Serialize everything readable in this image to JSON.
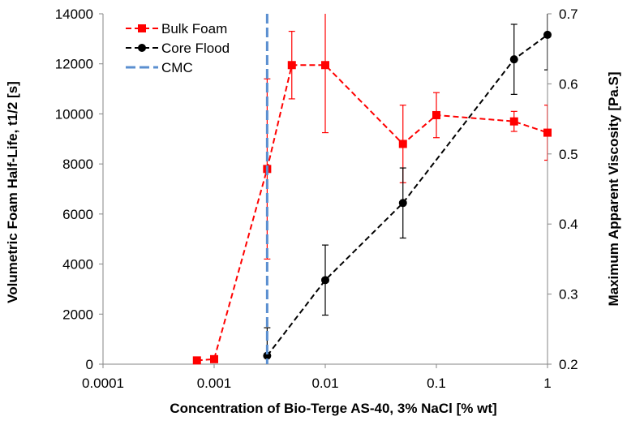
{
  "chart_data": {
    "type": "scatter",
    "title": "",
    "xlabel": "Concentration of Bio-Terge AS-40, 3% NaCl [% wt]",
    "ylabel": "Volumetric Foam Half-Life, t1/2 [s]",
    "y2label": "Maximum Apparent Viscosity [Pa.S]",
    "xscale": "log",
    "xlim": [
      0.0001,
      1
    ],
    "ylim": [
      0,
      14000
    ],
    "y2lim": [
      0.2,
      0.7
    ],
    "grid": false,
    "legend_position": "top-left",
    "x_ticks": [
      "0.0001",
      "0.001",
      "0.01",
      "0.1",
      "1"
    ],
    "y_ticks": [
      "0",
      "2000",
      "4000",
      "6000",
      "8000",
      "10000",
      "12000",
      "14000"
    ],
    "y2_ticks": [
      "0.2",
      "0.3",
      "0.4",
      "0.5",
      "0.6",
      "0.7"
    ],
    "series": [
      {
        "name": "Bulk Foam",
        "axis": "left",
        "color": "#ff0000",
        "marker": "square",
        "line": "dashed",
        "points": [
          {
            "x": 0.0007,
            "y": 150,
            "err": 0
          },
          {
            "x": 0.001,
            "y": 200,
            "err": 0
          },
          {
            "x": 0.003,
            "y": 7800,
            "err": 3600
          },
          {
            "x": 0.005,
            "y": 11950,
            "err": 1350
          },
          {
            "x": 0.01,
            "y": 11950,
            "err": 2700
          },
          {
            "x": 0.05,
            "y": 8800,
            "err": 1550
          },
          {
            "x": 0.1,
            "y": 9950,
            "err": 900
          },
          {
            "x": 0.5,
            "y": 9700,
            "err": 400
          },
          {
            "x": 1,
            "y": 9250,
            "err": 1100
          }
        ]
      },
      {
        "name": "Core Flood",
        "axis": "right",
        "color": "#000000",
        "marker": "circle",
        "line": "dashed",
        "points": [
          {
            "x": 0.003,
            "y": 0.212,
            "err": 0.04
          },
          {
            "x": 0.01,
            "y": 0.32,
            "err": 0.05
          },
          {
            "x": 0.05,
            "y": 0.43,
            "err": 0.05
          },
          {
            "x": 0.5,
            "y": 0.635,
            "err": 0.05
          },
          {
            "x": 1,
            "y": 0.67,
            "err": 0.05
          }
        ]
      },
      {
        "name": "CMC",
        "axis": "left",
        "color": "#5b8fd0",
        "marker": "none",
        "line": "dashed",
        "vertical_x": 0.003
      }
    ]
  }
}
